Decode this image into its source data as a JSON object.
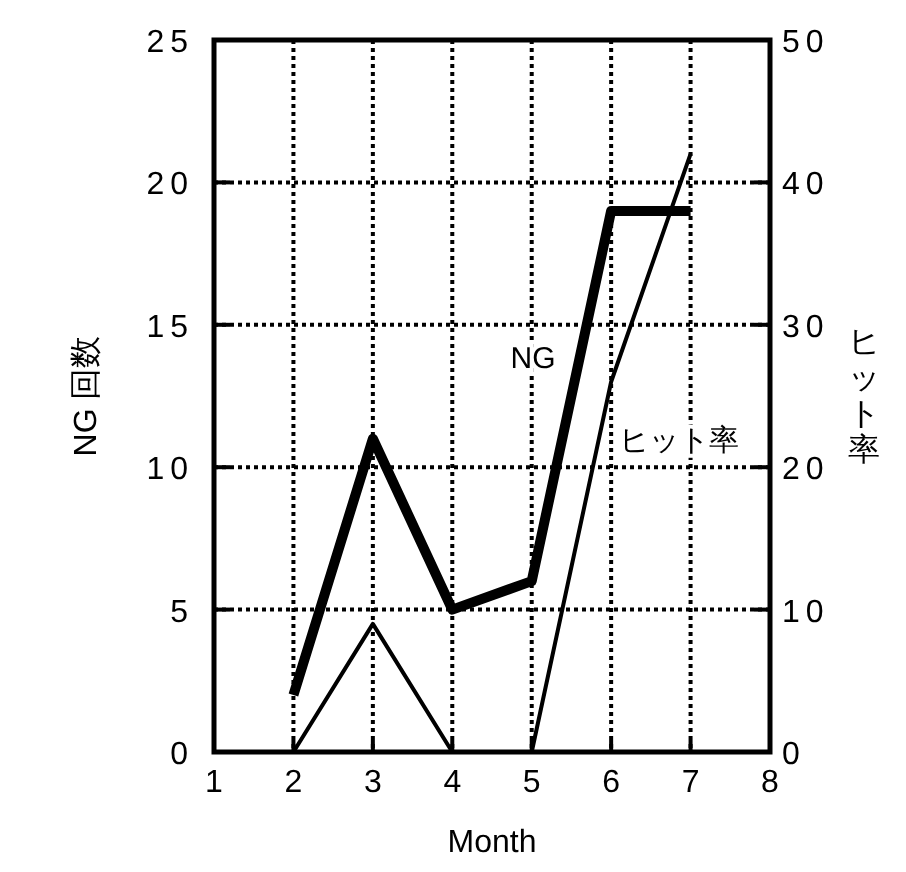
{
  "chart_data": {
    "type": "line",
    "xlabel": "Month",
    "ylabel": "NG 回数",
    "y2label": "ヒット率",
    "x": [
      2,
      3,
      4,
      5,
      6,
      7
    ],
    "series": [
      {
        "name": "NG",
        "color": "#000000",
        "values": [
          2,
          11,
          5,
          6,
          19,
          19
        ]
      },
      {
        "name": "ヒット率",
        "color": "#000000",
        "axis": "y2",
        "values": [
          0,
          9,
          0,
          0,
          26,
          42
        ]
      }
    ],
    "xlim": [
      1,
      8
    ],
    "xticks": [
      1,
      2,
      3,
      4,
      5,
      6,
      7,
      8
    ],
    "ylim": [
      0,
      25
    ],
    "yticks": [
      0,
      5,
      10,
      15,
      20,
      25
    ],
    "y2lim": [
      0,
      50
    ],
    "y2ticks": [
      0,
      10,
      20,
      30,
      40,
      50
    ],
    "grid": true,
    "line_style": "solid"
  }
}
